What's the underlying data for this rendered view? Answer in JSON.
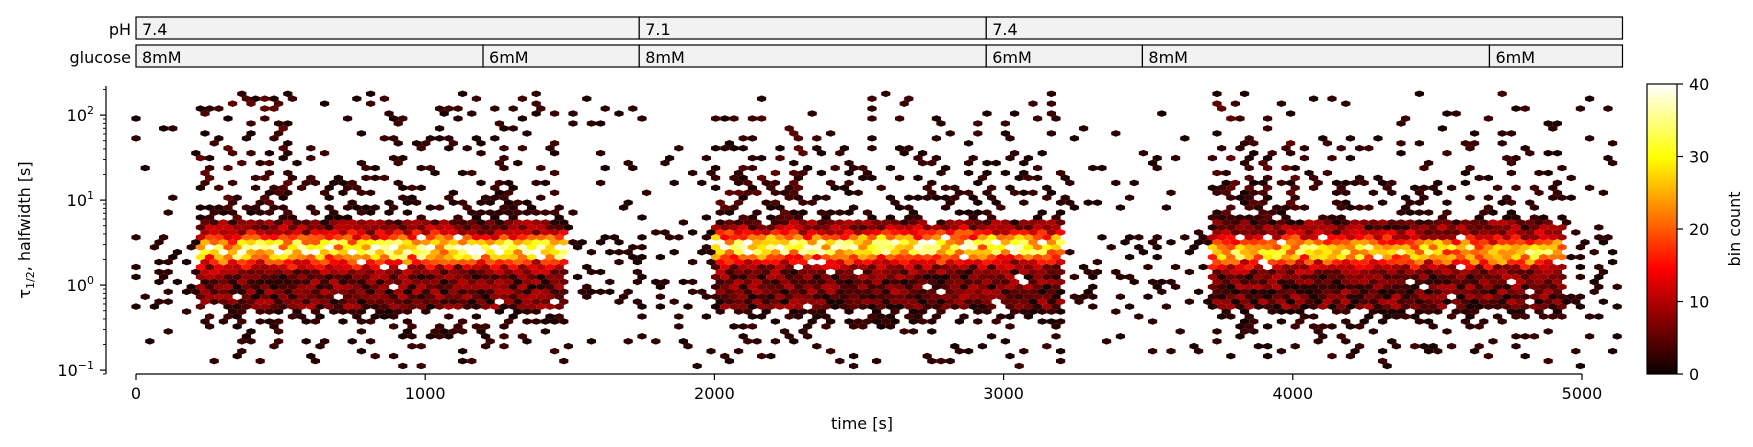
{
  "protocol": {
    "ph": {
      "label": "pH",
      "segments": [
        {
          "label": "7.4",
          "start": 0,
          "end": 1740
        },
        {
          "label": "7.1",
          "start": 1740,
          "end": 2940
        },
        {
          "label": "7.4",
          "start": 2940,
          "end": 5140
        }
      ]
    },
    "glucose": {
      "label": "glucose",
      "segments": [
        {
          "label": "8mM",
          "start": 0,
          "end": 1200
        },
        {
          "label": "6mM",
          "start": 1200,
          "end": 1740
        },
        {
          "label": "8mM",
          "start": 1740,
          "end": 2940
        },
        {
          "label": "6mM",
          "start": 2940,
          "end": 3480
        },
        {
          "label": "8mM",
          "start": 3480,
          "end": 4680
        },
        {
          "label": "6mM",
          "start": 4680,
          "end": 5140
        }
      ]
    }
  },
  "chart_data": {
    "type": "heatmap",
    "subtype": "hexbin",
    "xlabel": "time [s]",
    "ylabel": "τ1/2, halfwidth [s]",
    "xlim": [
      -10,
      5140
    ],
    "ylim": [
      0.09,
      220
    ],
    "yscale": "log",
    "xticks": [
      0,
      1000,
      2000,
      3000,
      4000,
      5000
    ],
    "yticks": [
      {
        "value": 0.1,
        "base": "10",
        "exp": "−1"
      },
      {
        "value": 1,
        "base": "10",
        "exp": "0"
      },
      {
        "value": 10,
        "base": "10",
        "exp": "1"
      },
      {
        "value": 100,
        "base": "10",
        "exp": "2"
      }
    ],
    "grid": false,
    "colormap": "hot",
    "colorbar": {
      "label": "bin count",
      "min": 0,
      "max": 40,
      "ticks": [
        0,
        10,
        20,
        30,
        40
      ]
    },
    "activity_periods": [
      {
        "start": 220,
        "end": 1490,
        "peak_count": 38,
        "dense_log_range": [
          -0.3,
          0.75
        ],
        "core_log": 0.42
      },
      {
        "start": 1990,
        "end": 3210,
        "peak_count": 36,
        "dense_log_range": [
          -0.3,
          0.75
        ],
        "core_log": 0.45
      },
      {
        "start": 3720,
        "end": 4940,
        "peak_count": 30,
        "dense_log_range": [
          -0.3,
          0.75
        ],
        "core_log": 0.4
      }
    ],
    "baseline": {
      "log_range": [
        -0.8,
        2.1
      ]
    }
  }
}
